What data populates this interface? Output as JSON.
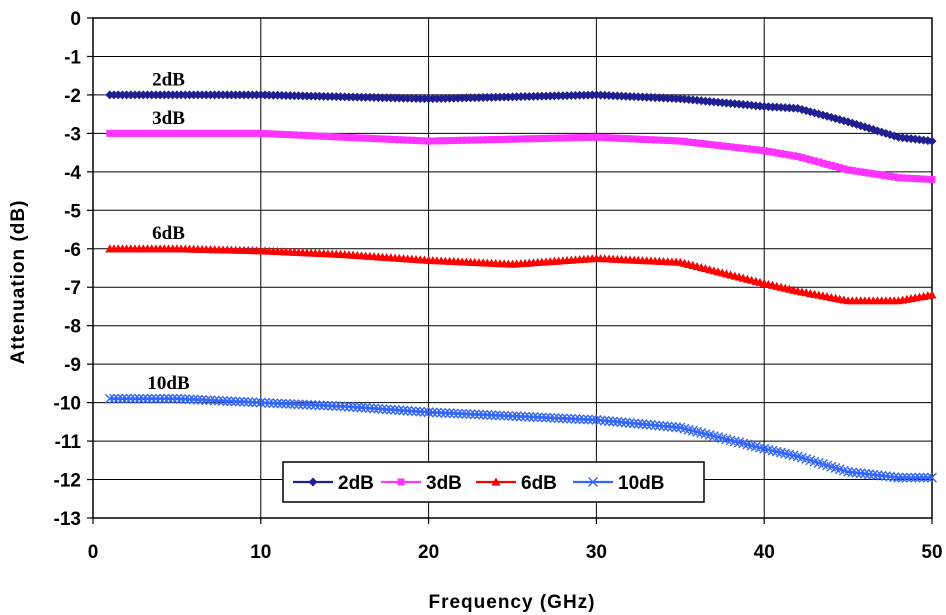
{
  "chart_data": {
    "type": "line",
    "xlabel": "Frequency (GHz)",
    "ylabel": "Attenuation (dB)",
    "xlim": [
      0,
      50
    ],
    "ylim": [
      -13,
      0
    ],
    "xticks": [
      "0",
      "10",
      "20",
      "30",
      "40",
      "50"
    ],
    "yticks": [
      "0",
      "-1",
      "-2",
      "-3",
      "-4",
      "-5",
      "-6",
      "-7",
      "-8",
      "-9",
      "-10",
      "-11",
      "-12",
      "-13"
    ],
    "grid": true,
    "legend_position": "bottom-center",
    "x": [
      1,
      5,
      10,
      15,
      20,
      25,
      30,
      35,
      40,
      42,
      45,
      48,
      50
    ],
    "series": [
      {
        "name": "2dB",
        "color": "#1f1f8f",
        "marker": "diamond",
        "values": [
          -2.0,
          -2.0,
          -2.0,
          -2.05,
          -2.1,
          -2.05,
          -2.0,
          -2.1,
          -2.3,
          -2.35,
          -2.7,
          -3.1,
          -3.2
        ]
      },
      {
        "name": "3dB",
        "color": "#ff33ff",
        "marker": "square",
        "values": [
          -3.0,
          -3.0,
          -3.0,
          -3.1,
          -3.2,
          -3.15,
          -3.1,
          -3.2,
          -3.45,
          -3.6,
          -3.95,
          -4.15,
          -4.2
        ]
      },
      {
        "name": "6dB",
        "color": "#ff0000",
        "marker": "triangle",
        "values": [
          -6.0,
          -6.0,
          -6.05,
          -6.15,
          -6.3,
          -6.4,
          -6.25,
          -6.35,
          -6.9,
          -7.1,
          -7.35,
          -7.35,
          -7.2
        ]
      },
      {
        "name": "10dB",
        "color": "#3366ff",
        "marker": "x",
        "values": [
          -9.9,
          -9.9,
          -10.0,
          -10.1,
          -10.25,
          -10.35,
          -10.45,
          -10.65,
          -11.2,
          -11.4,
          -11.8,
          -11.95,
          -11.95
        ]
      }
    ],
    "annotations": [
      {
        "text": "2dB",
        "x": 4.5,
        "y": -1.75
      },
      {
        "text": "3dB",
        "x": 4.5,
        "y": -2.75
      },
      {
        "text": "6dB",
        "x": 4.5,
        "y": -5.75
      },
      {
        "text": "10dB",
        "x": 4.5,
        "y": -9.65
      }
    ]
  }
}
